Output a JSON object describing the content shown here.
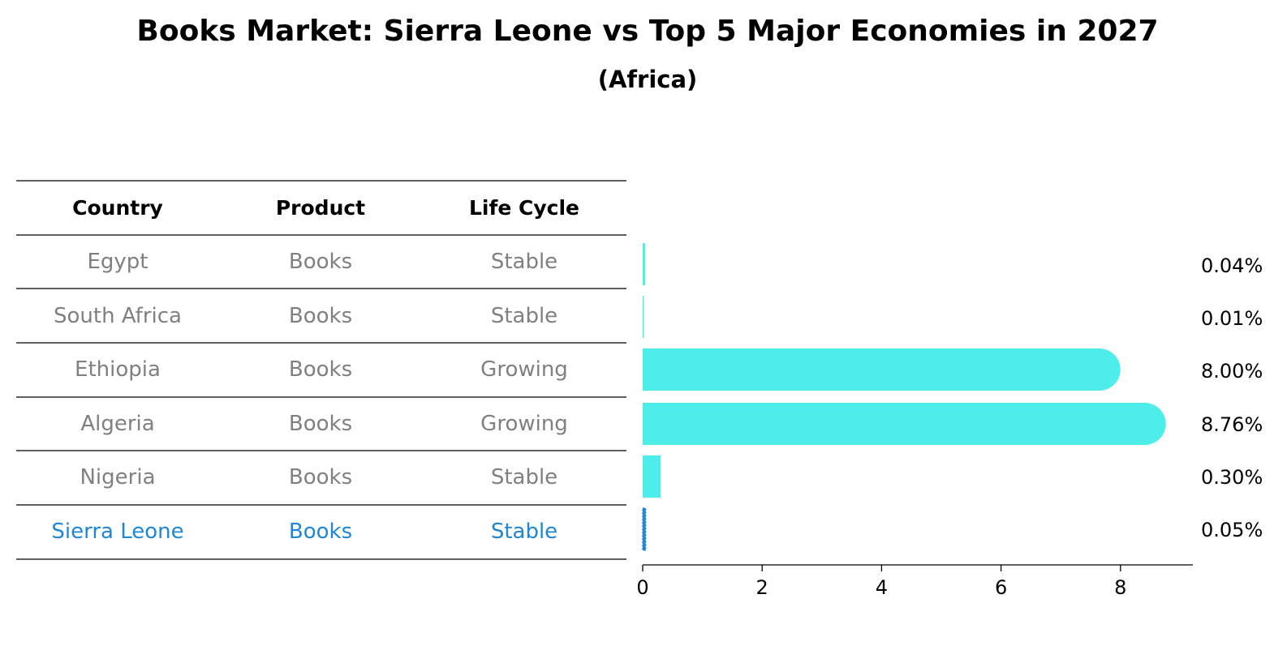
{
  "chart_data": {
    "type": "bar",
    "orientation": "horizontal",
    "title": "Books Market: Sierra Leone vs Top 5 Major Economies in 2027",
    "subtitle": "(Africa)",
    "table": {
      "columns": [
        "Country",
        "Product",
        "Life Cycle"
      ],
      "rows": [
        [
          "Egypt",
          "Books",
          "Stable"
        ],
        [
          "South Africa",
          "Books",
          "Stable"
        ],
        [
          "Ethiopia",
          "Books",
          "Growing"
        ],
        [
          "Algeria",
          "Books",
          "Growing"
        ],
        [
          "Nigeria",
          "Books",
          "Stable"
        ],
        [
          "Sierra Leone",
          "Books",
          "Stable"
        ]
      ],
      "highlight_row": 5
    },
    "categories": [
      "Egypt",
      "South Africa",
      "Ethiopia",
      "Algeria",
      "Nigeria",
      "Sierra Leone"
    ],
    "values": [
      0.04,
      0.01,
      8.0,
      8.76,
      0.3,
      0.05
    ],
    "value_labels": [
      "0.04%",
      "0.01%",
      "8.00%",
      "8.76%",
      "0.30%",
      "0.05%"
    ],
    "xticks": [
      0,
      2,
      4,
      6,
      8
    ],
    "xlim": [
      0,
      9.2
    ],
    "colors": {
      "bar": "#4deeea",
      "highlight_bar": "#1f87d6",
      "highlight_text": "#1f87d6",
      "muted_text": "#808080"
    }
  }
}
